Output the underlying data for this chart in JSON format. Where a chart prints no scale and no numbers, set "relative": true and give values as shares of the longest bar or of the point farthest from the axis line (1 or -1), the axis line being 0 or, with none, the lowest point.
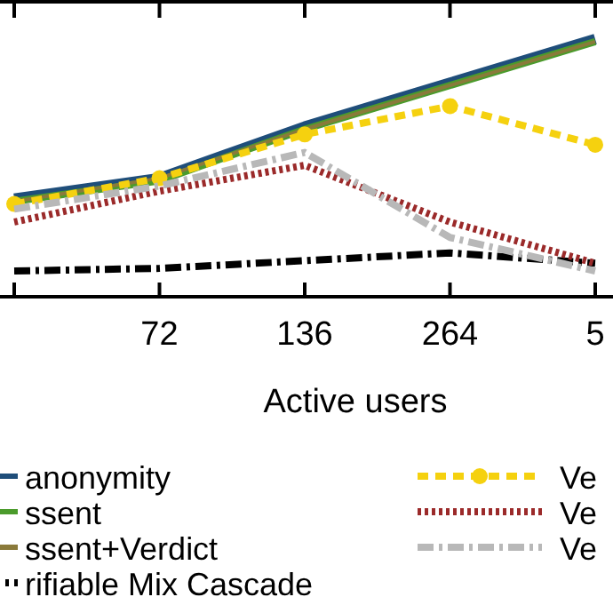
{
  "chart_data": {
    "type": "line",
    "relative": true,
    "xlabel": "Active users",
    "categories": [
      null,
      "72",
      "136",
      "264",
      "5"
    ],
    "legend": "bottom",
    "grid": false,
    "series": [
      {
        "name": "anonymity",
        "color": "#1f4e7a",
        "line_style": "solid",
        "values": [
          0.38,
          0.46,
          0.66,
          0.83,
          1.0
        ]
      },
      {
        "name": "ssent",
        "color": "#4b9b2c",
        "line_style": "solid",
        "values": [
          0.37,
          0.45,
          0.65,
          0.82,
          0.99
        ]
      },
      {
        "name": "ssent+Verdict",
        "color": "#8a7a3a",
        "line_style": "solid",
        "values": [
          0.37,
          0.46,
          0.65,
          0.82,
          0.99
        ]
      },
      {
        "name": "rifiable Mix Cascade",
        "color": "#000000",
        "line_style": "dashdot",
        "values": [
          0.1,
          0.11,
          0.14,
          0.17,
          0.13
        ]
      },
      {
        "name": "Ve",
        "color": "#f5d10f",
        "line_style": "dashed",
        "marker": "circle",
        "values": [
          0.36,
          0.46,
          0.63,
          0.74,
          0.59
        ]
      },
      {
        "name": "Ve",
        "color": "#9b2a2a",
        "line_style": "dotted",
        "values": [
          0.29,
          0.41,
          0.51,
          0.29,
          0.13
        ]
      },
      {
        "name": "Ve",
        "color": "#b8b8b8",
        "line_style": "dashdot",
        "values": [
          0.34,
          0.43,
          0.56,
          0.23,
          0.1
        ]
      }
    ]
  }
}
